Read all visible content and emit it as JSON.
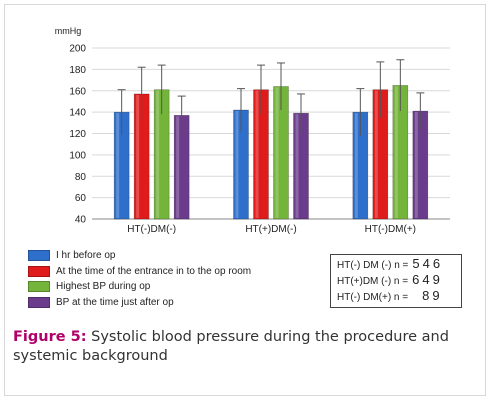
{
  "chart_data": {
    "type": "bar",
    "ylabel": "mmHg",
    "ylim": [
      40,
      200
    ],
    "yticks": [
      40,
      60,
      80,
      100,
      120,
      140,
      160,
      180,
      200
    ],
    "categories": [
      "HT(-)DM(-)",
      "HT(+)DM(-)",
      "HT(-)DM(+)"
    ],
    "series": [
      {
        "name": "I hr before op",
        "color": "#2e6fcc",
        "values": [
          140,
          142,
          140
        ],
        "error": [
          21,
          20,
          22
        ]
      },
      {
        "name": "At the time of the entrance in to the op room",
        "color": "#e01b1b",
        "values": [
          157,
          161,
          161
        ],
        "error": [
          25,
          23,
          26
        ]
      },
      {
        "name": "Highest BP during op",
        "color": "#74b43a",
        "values": [
          161,
          164,
          165
        ],
        "error": [
          23,
          22,
          24
        ]
      },
      {
        "name": "BP at the time just after op",
        "color": "#6b3b8c",
        "values": [
          137,
          139,
          141
        ],
        "error": [
          18,
          18,
          17
        ]
      }
    ],
    "grid": true,
    "legend_position": "bottom-left"
  },
  "legend": [
    {
      "label": "I hr before op",
      "color": "#2e6fcc"
    },
    {
      "label": "At the time of the entrance in to the op room",
      "color": "#e01b1b"
    },
    {
      "label": "Highest BP during op",
      "color": "#74b43a"
    },
    {
      "label": "BP at the time just after op",
      "color": "#6b3b8c"
    }
  ],
  "counts": [
    {
      "label": "HT(-) DM (-) n =",
      "value": "546"
    },
    {
      "label": "HT(+)DM (-) n =",
      "value": "649"
    },
    {
      "label": "HT(-) DM(+) n =",
      "value": "89"
    }
  ],
  "caption": {
    "figure_label": "Figure 5:",
    "text": "Systolic blood pressure during the procedure and systemic background"
  }
}
